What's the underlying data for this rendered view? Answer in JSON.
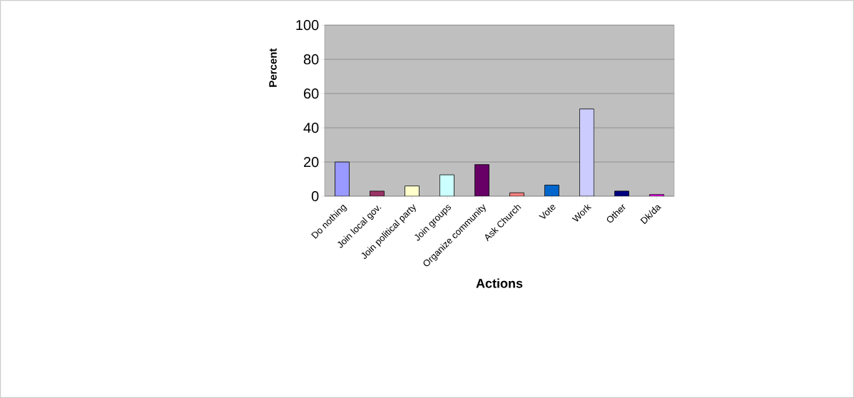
{
  "chart_data": {
    "type": "bar",
    "xlabel": "Actions",
    "ylabel": "Percent",
    "categories": [
      "Do nothing",
      "Join local gov.",
      "Join political party",
      "Join groups",
      "Organize community",
      "Ask Church",
      "Vote",
      "Work",
      "Other",
      "Dk/da"
    ],
    "values": [
      20,
      3,
      6,
      12.5,
      18.5,
      2,
      6.5,
      51,
      3,
      1
    ],
    "colors": [
      "#9999ff",
      "#993366",
      "#ffffcc",
      "#ccffff",
      "#660066",
      "#ff8080",
      "#0066cc",
      "#ccccff",
      "#000080",
      "#ff00ff"
    ],
    "ylim": [
      0,
      100
    ],
    "yticks": [
      0,
      20,
      40,
      60,
      80,
      100
    ],
    "grid": "y"
  }
}
